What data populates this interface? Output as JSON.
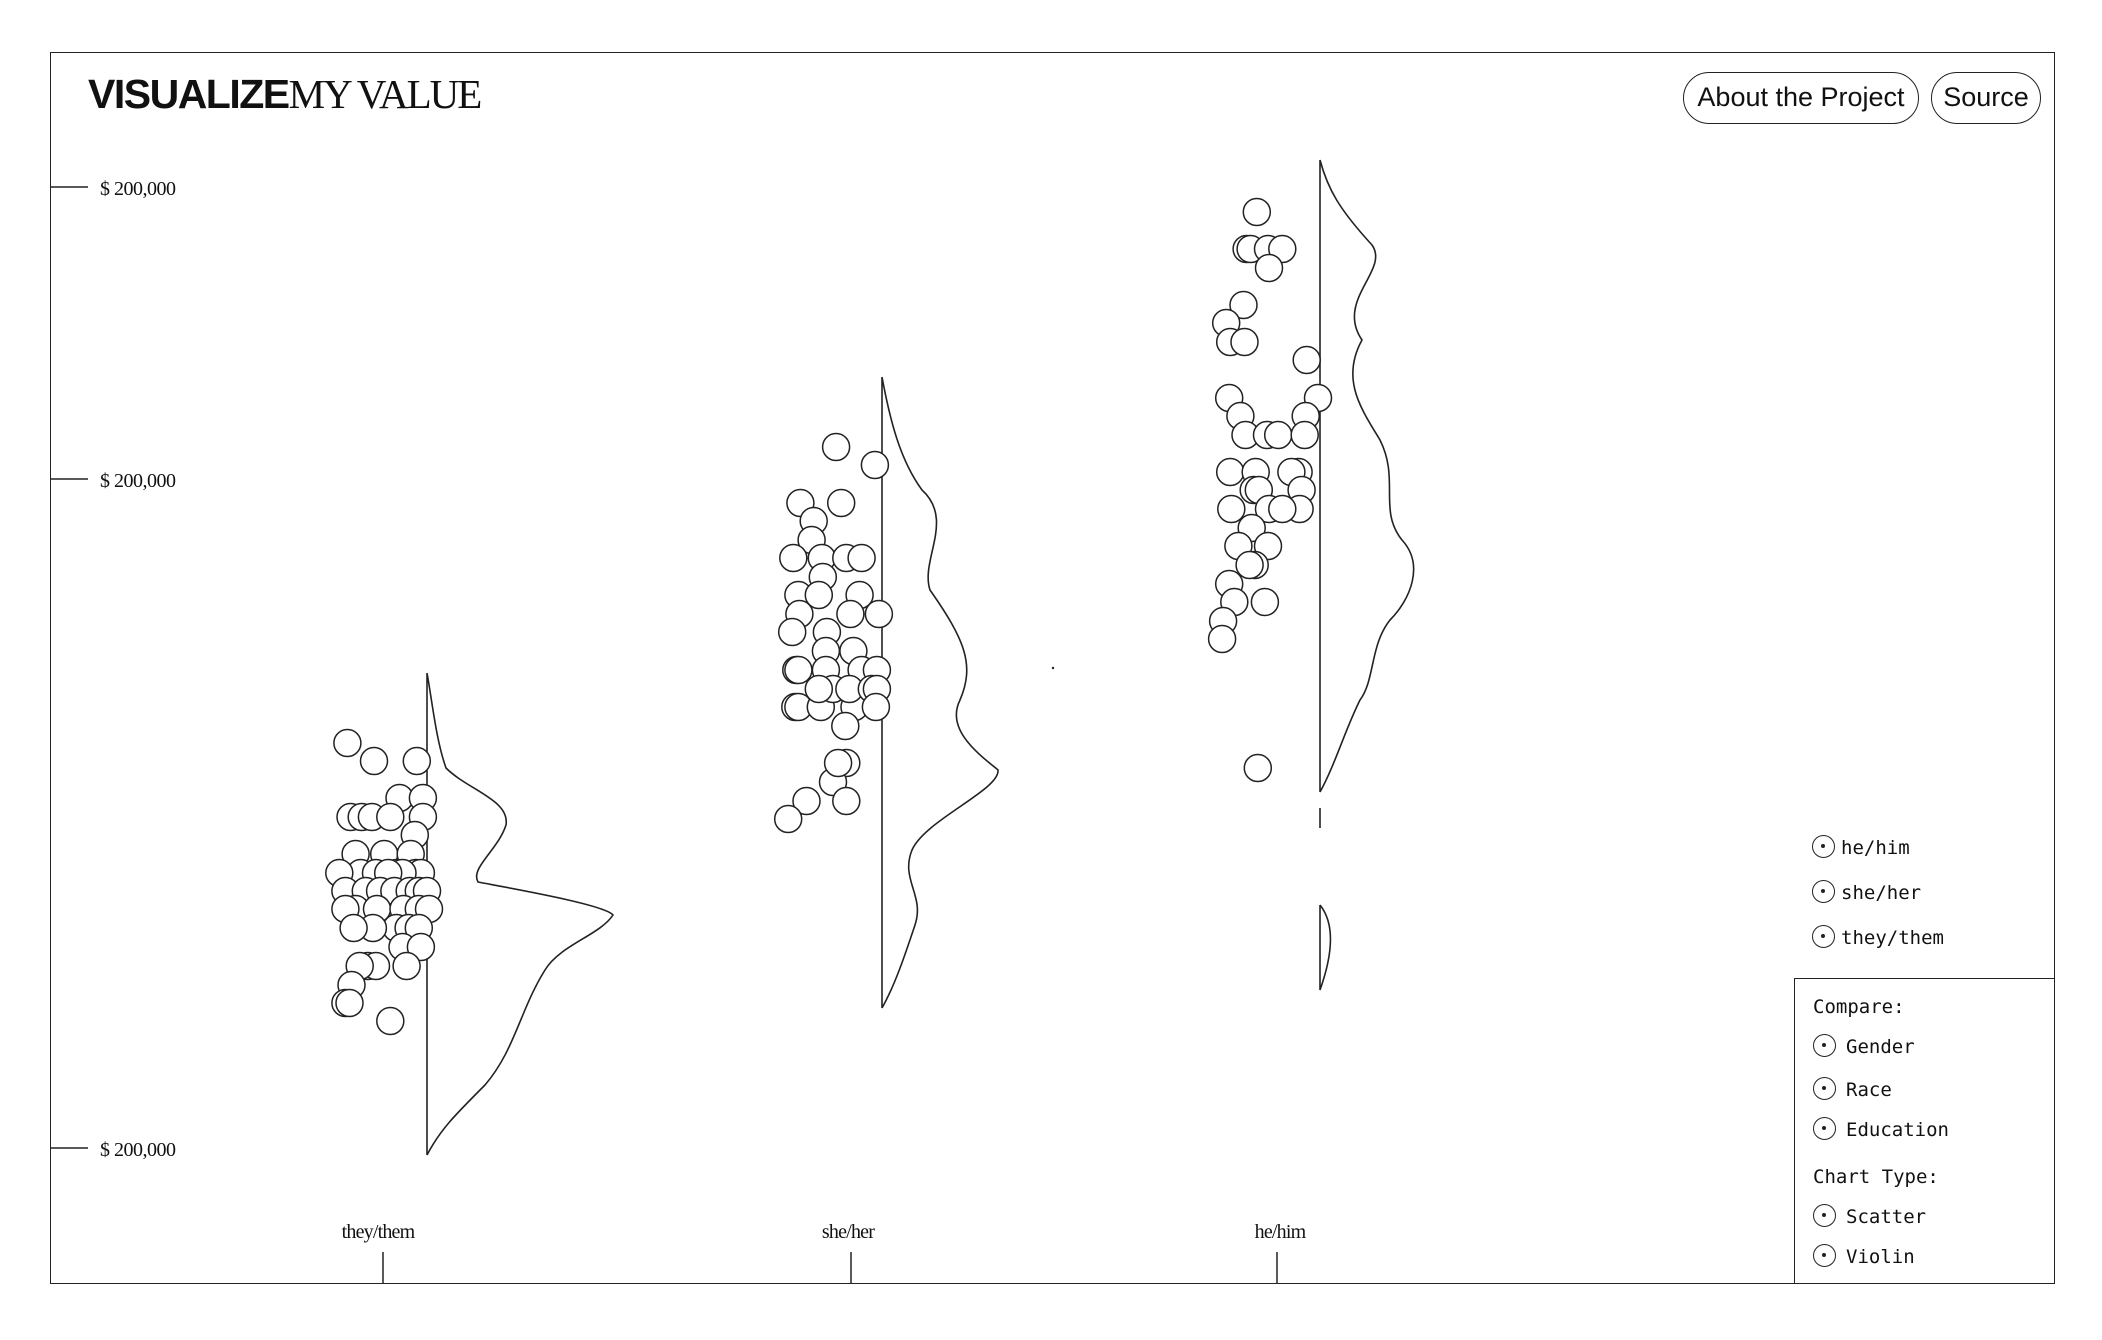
{
  "brand": {
    "bold": "VISUALIZE",
    "light": "MY VALUE"
  },
  "nav": {
    "about_label": "About the Project",
    "source_label": "Source"
  },
  "legend": {
    "items": [
      {
        "label": "he/him",
        "icon": "radio-icon"
      },
      {
        "label": "she/her",
        "icon": "radio-icon"
      },
      {
        "label": "they/them",
        "icon": "radio-icon"
      }
    ]
  },
  "controls": {
    "compare_label": "Compare:",
    "compare_options": [
      "Gender",
      "Race",
      "Education"
    ],
    "chart_type_label": "Chart Type:",
    "chart_type_options": [
      "Scatter",
      "Violin"
    ]
  },
  "colors": {
    "stroke": "#222222",
    "background": "#ffffff"
  },
  "chart_data": {
    "type": "scatter",
    "y_tick_labels": [
      "$ 200,000",
      "$ 200,000",
      "$ 200,000"
    ],
    "categories": [
      "they/them",
      "she/her",
      "he/him"
    ],
    "grid": false,
    "legend_position": "bottom-right",
    "series": [
      {
        "name": "they/them",
        "points": [
          [
            -78,
            30
          ],
          [
            -52,
            48
          ],
          [
            -10,
            48
          ],
          [
            -27,
            85
          ],
          [
            -4,
            85
          ],
          [
            -75,
            104
          ],
          [
            -64,
            104
          ],
          [
            -54,
            104
          ],
          [
            -36,
            104
          ],
          [
            -4,
            104
          ],
          [
            -12,
            122
          ],
          [
            -70,
            141
          ],
          [
            -42,
            141
          ],
          [
            -16,
            141
          ],
          [
            -65,
            160
          ],
          [
            -86,
            160
          ],
          [
            -50,
            160
          ],
          [
            -30,
            160
          ],
          [
            -11,
            160
          ],
          [
            -6,
            160
          ],
          [
            -24,
            160
          ],
          [
            -38,
            160
          ],
          [
            -80,
            178
          ],
          [
            -60,
            178
          ],
          [
            -46,
            178
          ],
          [
            -32,
            178
          ],
          [
            -17,
            178
          ],
          [
            -8,
            178
          ],
          [
            0,
            178
          ],
          [
            -70,
            196
          ],
          [
            -49,
            196
          ],
          [
            -23,
            196
          ],
          [
            -8,
            196
          ],
          [
            2,
            196
          ],
          [
            -80,
            196
          ],
          [
            -30,
            215
          ],
          [
            -53,
            215
          ],
          [
            -18,
            215
          ],
          [
            -72,
            215
          ],
          [
            -8,
            215
          ],
          [
            -24,
            234
          ],
          [
            -6,
            234
          ],
          [
            -58,
            253
          ],
          [
            -50,
            253
          ],
          [
            -66,
            253
          ],
          [
            -20,
            253
          ],
          [
            -74,
            272
          ],
          [
            -80,
            290
          ],
          [
            -76,
            290
          ],
          [
            -36,
            308
          ]
        ]
      },
      {
        "name": "she/her",
        "points": [
          [
            -45,
            30
          ],
          [
            -7,
            48
          ],
          [
            -80,
            86
          ],
          [
            -40,
            86
          ],
          [
            -67,
            104
          ],
          [
            -69,
            123
          ],
          [
            -87,
            141
          ],
          [
            -59,
            141
          ],
          [
            -35,
            141
          ],
          [
            -20,
            141
          ],
          [
            -58,
            160
          ],
          [
            -82,
            178
          ],
          [
            -22,
            178
          ],
          [
            -62,
            178
          ],
          [
            -81,
            197
          ],
          [
            -31,
            197
          ],
          [
            -3,
            197
          ],
          [
            -88,
            215
          ],
          [
            -54,
            215
          ],
          [
            -55,
            234
          ],
          [
            -28,
            234
          ],
          [
            -84,
            253
          ],
          [
            -55,
            253
          ],
          [
            -20,
            253
          ],
          [
            -5,
            253
          ],
          [
            -82,
            253
          ],
          [
            -85,
            290
          ],
          [
            -82,
            290
          ],
          [
            -60,
            290
          ],
          [
            -27,
            290
          ],
          [
            -48,
            272
          ],
          [
            -32,
            272
          ],
          [
            -10,
            272
          ],
          [
            -62,
            272
          ],
          [
            -5,
            272
          ],
          [
            -6,
            290
          ],
          [
            -36,
            309
          ],
          [
            -35,
            346
          ],
          [
            -48,
            365
          ],
          [
            -74,
            384
          ],
          [
            -35,
            384
          ],
          [
            -92,
            402
          ],
          [
            -43,
            346
          ]
        ]
      },
      {
        "name": "he/him",
        "points": [
          [
            -62,
            12
          ],
          [
            -72,
            49
          ],
          [
            -68,
            49
          ],
          [
            -51,
            49
          ],
          [
            -37,
            49
          ],
          [
            -50,
            68
          ],
          [
            -75,
            105
          ],
          [
            -92,
            123
          ],
          [
            -88,
            142
          ],
          [
            -74,
            142
          ],
          [
            -13,
            160
          ],
          [
            -89,
            198
          ],
          [
            -78,
            216
          ],
          [
            -2,
            198
          ],
          [
            -14,
            216
          ],
          [
            -73,
            235
          ],
          [
            -52,
            235
          ],
          [
            -41,
            235
          ],
          [
            -15,
            235
          ],
          [
            -88,
            272
          ],
          [
            -63,
            272
          ],
          [
            -21,
            272
          ],
          [
            -28,
            272
          ],
          [
            -18,
            290
          ],
          [
            -65,
            290
          ],
          [
            -60,
            290
          ],
          [
            -20,
            309
          ],
          [
            -87,
            309
          ],
          [
            -50,
            309
          ],
          [
            -37,
            309
          ],
          [
            -67,
            328
          ],
          [
            -80,
            346
          ],
          [
            -51,
            346
          ],
          [
            -64,
            365
          ],
          [
            -69,
            365
          ],
          [
            -89,
            384
          ],
          [
            -84,
            402
          ],
          [
            -54,
            402
          ],
          [
            -95,
            421
          ],
          [
            -96,
            439
          ],
          [
            -61,
            568
          ]
        ]
      }
    ]
  }
}
